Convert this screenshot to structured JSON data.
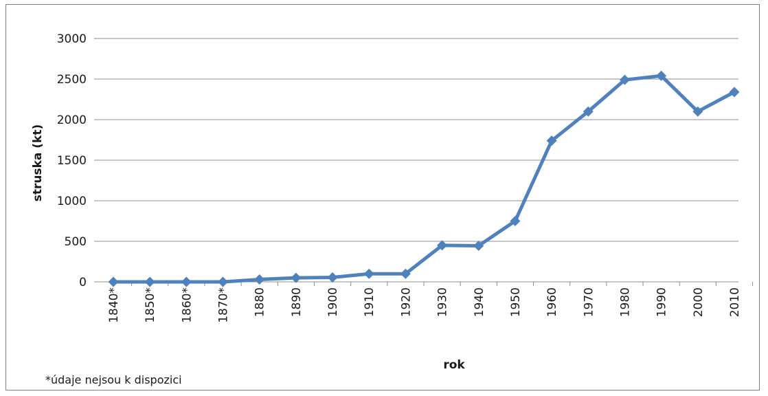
{
  "chart_data": {
    "type": "line",
    "title": "",
    "xlabel": "rok",
    "ylabel": "struska (kt)",
    "ylim": [
      0,
      3000
    ],
    "yticks": [
      0,
      500,
      1000,
      1500,
      2000,
      2500,
      3000
    ],
    "grid": true,
    "legend": "none",
    "categories": [
      "1840*",
      "1850*",
      "1860*",
      "1870*",
      "1880",
      "1890",
      "1900",
      "1910",
      "1920",
      "1930",
      "1940",
      "1950",
      "1960",
      "1970",
      "1980",
      "1990",
      "2000",
      "2010"
    ],
    "series": [
      {
        "color": "#4f81bd",
        "values": [
          0,
          0,
          0,
          0,
          30,
          50,
          55,
          100,
          100,
          450,
          445,
          750,
          1740,
          2100,
          2490,
          2540,
          2100,
          2340
        ]
      }
    ],
    "footnote": "*údaje nejsou k dispozici"
  }
}
